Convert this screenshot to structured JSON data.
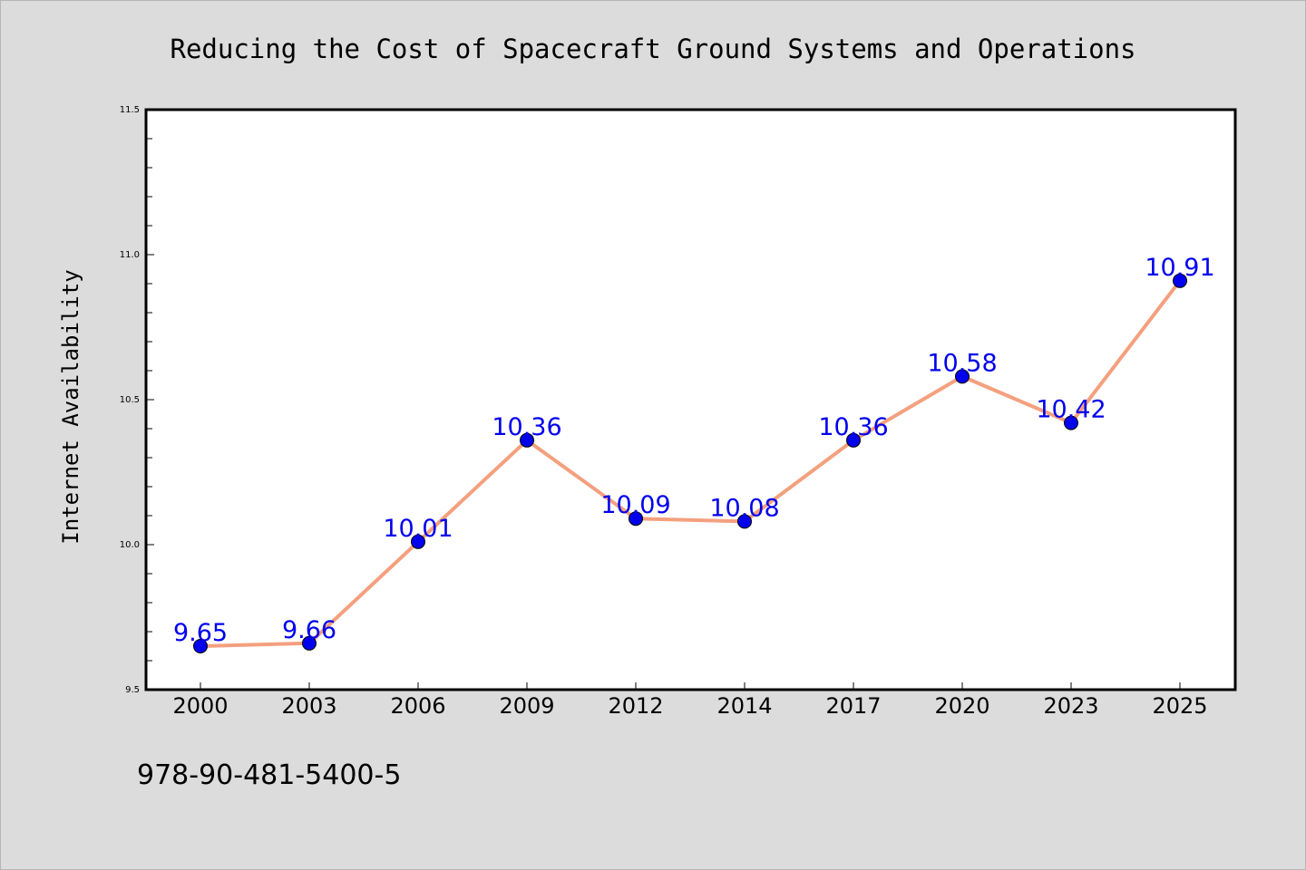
{
  "chart_data": {
    "type": "line",
    "title": "Reducing the Cost of Spacecraft Ground Systems and Operations",
    "xlabel": "",
    "ylabel": "Internet Availability",
    "categories": [
      "2000",
      "2003",
      "2006",
      "2009",
      "2012",
      "2014",
      "2017",
      "2020",
      "2023",
      "2025"
    ],
    "series": [
      {
        "values": [
          9.65,
          9.66,
          10.01,
          10.36,
          10.09,
          10.08,
          10.36,
          10.58,
          10.42,
          10.91
        ],
        "line_color": "#f4a07e",
        "marker_color": "#0000ee"
      }
    ],
    "data_labels": [
      "9.65",
      "9.66",
      "10.01",
      "10.36",
      "10.09",
      "10.08",
      "10.36",
      "10.58",
      "10.42",
      "10.91"
    ],
    "ylim": [
      9.5,
      11.5
    ],
    "y_major_ticks": [
      9.5,
      10.0,
      10.5,
      11.0,
      11.5
    ],
    "y_tick_labels": [
      "9.5",
      "10.0",
      "10.5",
      "11.0",
      "11.5"
    ],
    "y_minor_step": 0.1,
    "grid": false,
    "legend": "none",
    "label_color": "#0000ee"
  },
  "footer": {
    "isbn": "978-90-481-5400-5"
  }
}
